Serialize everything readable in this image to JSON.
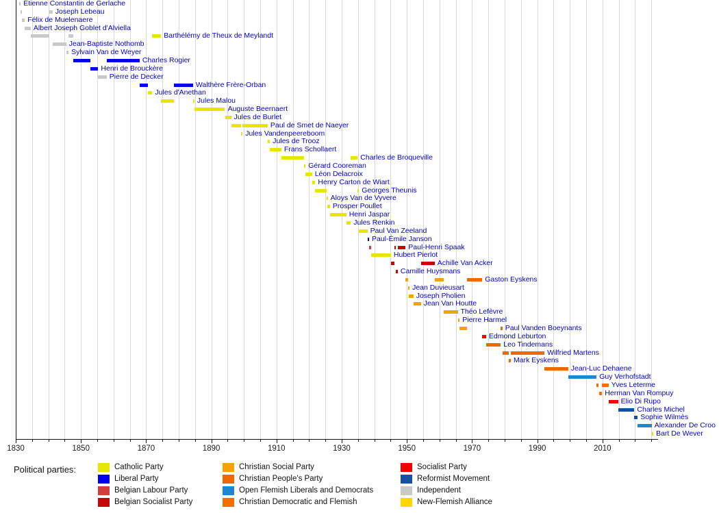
{
  "chart_data": {
    "type": "timeline-gantt",
    "title": "",
    "legend_title": "Political parties:",
    "axis": {
      "start_year": 1830,
      "end_year": 2027,
      "major_tick_labels": [
        "1830",
        "1850",
        "1870",
        "1890",
        "1910",
        "1930",
        "1950",
        "1970",
        "1990",
        "2010"
      ],
      "major_tick_years": [
        1830,
        1850,
        1870,
        1890,
        1910,
        1930,
        1950,
        1970,
        1990,
        2010
      ],
      "minor_tick_step": 5,
      "gridline_step": 5
    },
    "parties": {
      "cath": {
        "label": "Catholic Party",
        "color": "#e6e600"
      },
      "lib": {
        "label": "Liberal Party",
        "color": "#0000ee"
      },
      "labour": {
        "label": "Belgian Labour Party",
        "color": "#d43c3c"
      },
      "bsp": {
        "label": "Belgian Socialist Party",
        "color": "#c40808"
      },
      "psc": {
        "label": "Christian Social Party",
        "color": "#f5a300"
      },
      "cvp": {
        "label": "Christian People's Party",
        "color": "#f06800"
      },
      "vld": {
        "label": "Open Flemish Liberals and Democrats",
        "color": "#1d87d0"
      },
      "cdv": {
        "label": "Christian Democratic and Flemish",
        "color": "#f37000"
      },
      "sp": {
        "label": "Socialist Party",
        "color": "#f40000"
      },
      "mr": {
        "label": "Reformist Movement",
        "color": "#15519f"
      },
      "ind": {
        "label": "Independent",
        "color": "#c9c9c9"
      },
      "nva": {
        "label": "New-Flemish Alliance",
        "color": "#ffd700"
      }
    },
    "legend_columns": [
      [
        "cath",
        "lib",
        "labour",
        "bsp"
      ],
      [
        "psc",
        "cvp",
        "vld",
        "cdv"
      ],
      [
        "sp",
        "mr",
        "ind",
        "nva"
      ]
    ],
    "prime_ministers": [
      {
        "name": "Étienne Constantin de Gerlache",
        "terms": [
          {
            "start": 1831.1,
            "end": 1831.4,
            "party": "ind"
          }
        ]
      },
      {
        "name": "Joseph Lebeau",
        "terms": [
          {
            "start": 1831.4,
            "end": 1831.8,
            "party": "ind"
          },
          {
            "start": 1840.3,
            "end": 1841.3,
            "party": "ind"
          }
        ]
      },
      {
        "name": "Félix de Muelenaere",
        "terms": [
          {
            "start": 1831.8,
            "end": 1832.8,
            "party": "ind"
          }
        ]
      },
      {
        "name": "Albert Joseph Goblet d'Alviella",
        "terms": [
          {
            "start": 1832.8,
            "end": 1834.6,
            "party": "ind"
          }
        ]
      },
      {
        "name": "Barthélémy de Theux de Meylandt",
        "terms": [
          {
            "start": 1834.6,
            "end": 1840.3,
            "party": "ind"
          },
          {
            "start": 1846.2,
            "end": 1847.6,
            "party": "ind"
          },
          {
            "start": 1871.9,
            "end": 1874.6,
            "party": "cath"
          }
        ]
      },
      {
        "name": "Jean-Baptiste Nothomb",
        "terms": [
          {
            "start": 1841.3,
            "end": 1845.5,
            "party": "ind"
          }
        ]
      },
      {
        "name": "Sylvain Van de Weyer",
        "terms": [
          {
            "start": 1845.5,
            "end": 1846.2,
            "party": "ind"
          }
        ]
      },
      {
        "name": "Charles Rogier",
        "terms": [
          {
            "start": 1847.6,
            "end": 1852.8,
            "party": "lib"
          },
          {
            "start": 1857.9,
            "end": 1868.0,
            "party": "lib"
          }
        ]
      },
      {
        "name": "Henri de Brouckère",
        "terms": [
          {
            "start": 1852.8,
            "end": 1855.3,
            "party": "lib"
          }
        ]
      },
      {
        "name": "Pierre de Decker",
        "terms": [
          {
            "start": 1855.3,
            "end": 1857.9,
            "party": "ind"
          }
        ]
      },
      {
        "name": "Walthère Frère-Orban",
        "terms": [
          {
            "start": 1868.0,
            "end": 1870.5,
            "party": "lib"
          },
          {
            "start": 1878.5,
            "end": 1884.4,
            "party": "lib"
          }
        ]
      },
      {
        "name": "Jules d'Anethan",
        "terms": [
          {
            "start": 1870.5,
            "end": 1871.9,
            "party": "cath"
          }
        ]
      },
      {
        "name": "Jules Malou",
        "terms": [
          {
            "start": 1874.6,
            "end": 1878.5,
            "party": "cath"
          },
          {
            "start": 1884.4,
            "end": 1884.8,
            "party": "cath"
          }
        ]
      },
      {
        "name": "Auguste Beernaert",
        "terms": [
          {
            "start": 1884.8,
            "end": 1894.2,
            "party": "cath"
          }
        ]
      },
      {
        "name": "Jules de Burlet",
        "terms": [
          {
            "start": 1894.2,
            "end": 1896.1,
            "party": "cath"
          }
        ]
      },
      {
        "name": "Paul de Smet de Naeyer",
        "terms": [
          {
            "start": 1896.1,
            "end": 1899.1,
            "party": "cath"
          },
          {
            "start": 1899.6,
            "end": 1907.3,
            "party": "cath"
          }
        ]
      },
      {
        "name": "Jules Vandenpeereboom",
        "terms": [
          {
            "start": 1899.1,
            "end": 1899.6,
            "party": "cath"
          }
        ]
      },
      {
        "name": "Jules de Trooz",
        "terms": [
          {
            "start": 1907.3,
            "end": 1908.0,
            "party": "cath"
          }
        ]
      },
      {
        "name": "Frans Schollaert",
        "terms": [
          {
            "start": 1908.0,
            "end": 1911.5,
            "party": "cath"
          }
        ]
      },
      {
        "name": "Charles de Broqueville",
        "terms": [
          {
            "start": 1911.5,
            "end": 1918.4,
            "party": "cath"
          },
          {
            "start": 1932.8,
            "end": 1934.9,
            "party": "cath"
          }
        ]
      },
      {
        "name": "Gérard Cooreman",
        "terms": [
          {
            "start": 1918.4,
            "end": 1918.9,
            "party": "cath"
          }
        ]
      },
      {
        "name": "Léon Delacroix",
        "terms": [
          {
            "start": 1918.9,
            "end": 1920.9,
            "party": "cath"
          }
        ]
      },
      {
        "name": "Henry Carton de Wiart",
        "terms": [
          {
            "start": 1920.9,
            "end": 1921.9,
            "party": "cath"
          }
        ]
      },
      {
        "name": "Georges Theunis",
        "terms": [
          {
            "start": 1921.9,
            "end": 1925.3,
            "party": "cath"
          },
          {
            "start": 1934.9,
            "end": 1935.2,
            "party": "cath"
          }
        ]
      },
      {
        "name": "Aloys Van de Vyvere",
        "terms": [
          {
            "start": 1925.3,
            "end": 1925.5,
            "party": "cath"
          }
        ]
      },
      {
        "name": "Prosper Poullet",
        "terms": [
          {
            "start": 1925.5,
            "end": 1926.4,
            "party": "cath"
          }
        ]
      },
      {
        "name": "Henri Jaspar",
        "terms": [
          {
            "start": 1926.4,
            "end": 1931.4,
            "party": "cath"
          }
        ]
      },
      {
        "name": "Jules Renkin",
        "terms": [
          {
            "start": 1931.4,
            "end": 1932.8,
            "party": "cath"
          }
        ]
      },
      {
        "name": "Paul Van Zeeland",
        "terms": [
          {
            "start": 1935.2,
            "end": 1937.9,
            "party": "cath"
          }
        ]
      },
      {
        "name": "Paul-Émile Janson",
        "terms": [
          {
            "start": 1937.9,
            "end": 1938.4,
            "party": "lib"
          }
        ]
      },
      {
        "name": "Paul-Henri Spaak",
        "terms": [
          {
            "start": 1938.4,
            "end": 1939.1,
            "party": "labour"
          },
          {
            "start": 1946.2,
            "end": 1946.3,
            "party": "bsp"
          },
          {
            "start": 1947.2,
            "end": 1949.6,
            "party": "bsp"
          }
        ]
      },
      {
        "name": "Hubert Pierlot",
        "terms": [
          {
            "start": 1939.1,
            "end": 1945.1,
            "party": "cath"
          }
        ]
      },
      {
        "name": "Achille Van Acker",
        "terms": [
          {
            "start": 1945.1,
            "end": 1946.2,
            "party": "bsp"
          },
          {
            "start": 1954.3,
            "end": 1958.5,
            "party": "bsp"
          }
        ]
      },
      {
        "name": "Camille Huysmans",
        "terms": [
          {
            "start": 1946.6,
            "end": 1947.2,
            "party": "bsp"
          }
        ]
      },
      {
        "name": "Gaston Eyskens",
        "terms": [
          {
            "start": 1949.6,
            "end": 1950.4,
            "party": "psc"
          },
          {
            "start": 1958.5,
            "end": 1961.3,
            "party": "psc"
          },
          {
            "start": 1968.5,
            "end": 1973.1,
            "party": "cvp"
          }
        ]
      },
      {
        "name": "Jean Duvieusart",
        "terms": [
          {
            "start": 1950.4,
            "end": 1950.6,
            "party": "psc"
          }
        ]
      },
      {
        "name": "Joseph Pholien",
        "terms": [
          {
            "start": 1950.6,
            "end": 1952.0,
            "party": "psc"
          }
        ]
      },
      {
        "name": "Jean Van Houtte",
        "terms": [
          {
            "start": 1952.0,
            "end": 1954.3,
            "party": "psc"
          }
        ]
      },
      {
        "name": "Théo Lefèvre",
        "terms": [
          {
            "start": 1961.3,
            "end": 1965.6,
            "party": "psc"
          }
        ]
      },
      {
        "name": "Pierre Harmel",
        "terms": [
          {
            "start": 1965.6,
            "end": 1966.2,
            "party": "psc"
          }
        ]
      },
      {
        "name": "Paul Vanden Boeynants",
        "terms": [
          {
            "start": 1966.2,
            "end": 1968.5,
            "party": "psc"
          },
          {
            "start": 1978.8,
            "end": 1979.3,
            "party": "cvp"
          }
        ]
      },
      {
        "name": "Edmond Leburton",
        "terms": [
          {
            "start": 1973.1,
            "end": 1974.3,
            "party": "sp"
          }
        ]
      },
      {
        "name": "Leo Tindemans",
        "terms": [
          {
            "start": 1974.3,
            "end": 1978.8,
            "party": "cvp"
          }
        ]
      },
      {
        "name": "Wilfried Martens",
        "terms": [
          {
            "start": 1979.3,
            "end": 1981.3,
            "party": "cvp"
          },
          {
            "start": 1981.9,
            "end": 1992.2,
            "party": "cvp"
          }
        ]
      },
      {
        "name": "Mark Eyskens",
        "terms": [
          {
            "start": 1981.3,
            "end": 1981.9,
            "party": "cvp"
          }
        ]
      },
      {
        "name": "Jean-Luc Dehaene",
        "terms": [
          {
            "start": 1992.2,
            "end": 1999.5,
            "party": "cvp"
          }
        ]
      },
      {
        "name": "Guy Verhofstadt",
        "terms": [
          {
            "start": 1999.5,
            "end": 2008.2,
            "party": "vld"
          }
        ]
      },
      {
        "name": "Yves Leterme",
        "terms": [
          {
            "start": 2008.2,
            "end": 2008.9,
            "party": "cdv"
          },
          {
            "start": 2009.9,
            "end": 2011.9,
            "party": "cdv"
          }
        ]
      },
      {
        "name": "Herman Van Rompuy",
        "terms": [
          {
            "start": 2008.9,
            "end": 2009.9,
            "party": "cdv"
          }
        ]
      },
      {
        "name": "Elio Di Rupo",
        "terms": [
          {
            "start": 2011.9,
            "end": 2014.8,
            "party": "sp"
          }
        ]
      },
      {
        "name": "Charles Michel",
        "terms": [
          {
            "start": 2014.8,
            "end": 2019.8,
            "party": "mr"
          }
        ]
      },
      {
        "name": "Sophie Wilmès",
        "terms": [
          {
            "start": 2019.8,
            "end": 2020.8,
            "party": "mr"
          }
        ]
      },
      {
        "name": "Alexander De Croo",
        "terms": [
          {
            "start": 2020.8,
            "end": 2025.1,
            "party": "vld"
          }
        ]
      },
      {
        "name": "Bart De Wever",
        "terms": [
          {
            "start": 2025.1,
            "end": 2025.6,
            "party": "nva"
          }
        ]
      }
    ]
  }
}
